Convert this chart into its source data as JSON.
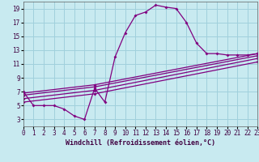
{
  "xlabel": "Windchill (Refroidissement éolien,°C)",
  "bg_color": "#c8eaf0",
  "grid_color": "#a0d0dc",
  "line_color": "#800080",
  "xlim": [
    0,
    23
  ],
  "ylim": [
    2,
    20
  ],
  "xticks": [
    0,
    1,
    2,
    3,
    4,
    5,
    6,
    7,
    8,
    9,
    10,
    11,
    12,
    13,
    14,
    15,
    16,
    17,
    18,
    19,
    20,
    21,
    22,
    23
  ],
  "yticks": [
    3,
    5,
    7,
    9,
    11,
    13,
    15,
    17,
    19
  ],
  "curve1_x": [
    0,
    1,
    2,
    3,
    4,
    5,
    6,
    7,
    8,
    9,
    10,
    11,
    12,
    13,
    14,
    15,
    16,
    17,
    18,
    19,
    20,
    21,
    22,
    23
  ],
  "curve1_y": [
    7.0,
    5.0,
    5.0,
    5.0,
    4.5,
    3.5,
    3.0,
    7.5,
    5.5,
    12.0,
    15.5,
    18.0,
    18.5,
    19.5,
    19.2,
    19.0,
    17.0,
    14.0,
    12.5,
    12.5,
    12.3,
    12.3,
    12.3,
    12.5
  ],
  "line2_x": [
    0,
    7,
    23
  ],
  "line2_y": [
    6.8,
    8.0,
    12.5
  ],
  "line3_x": [
    0,
    7,
    23
  ],
  "line3_y": [
    6.5,
    7.7,
    12.2
  ],
  "line4_x": [
    0,
    7,
    23
  ],
  "line4_y": [
    6.0,
    7.2,
    11.8
  ],
  "line5_x": [
    0,
    7,
    23
  ],
  "line5_y": [
    5.5,
    6.7,
    11.3
  ],
  "axis_fontsize": 6,
  "tick_fontsize": 5.5
}
